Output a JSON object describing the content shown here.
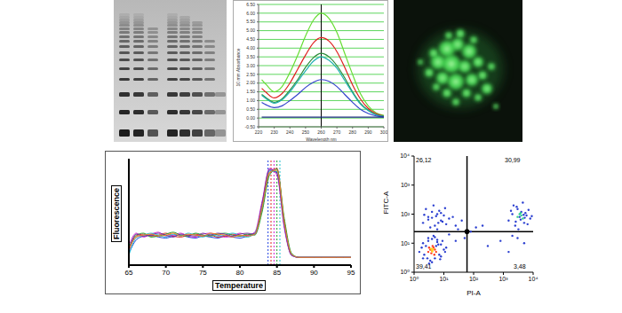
{
  "chart_data": [
    {
      "type": "line",
      "x_label": "Wavelength nm",
      "y_label": "10 mm Absorbance",
      "x": [
        222,
        225,
        230,
        235,
        240,
        245,
        250,
        255,
        260,
        265,
        270,
        275,
        280,
        285,
        290,
        295,
        300
      ],
      "series": [
        {
          "color": "#66dd33",
          "values": [
            2.2,
            1.9,
            1.5,
            1.8,
            2.6,
            3.6,
            4.7,
            5.6,
            6.0,
            5.7,
            4.9,
            3.7,
            2.5,
            1.4,
            0.7,
            0.3,
            0.15
          ]
        },
        {
          "color": "#e02020",
          "values": [
            1.7,
            1.45,
            1.15,
            1.4,
            2.0,
            2.8,
            3.6,
            4.3,
            4.6,
            4.4,
            3.8,
            2.9,
            1.9,
            1.1,
            0.55,
            0.25,
            0.12
          ]
        },
        {
          "color": "#2a8a3a",
          "values": [
            1.35,
            1.15,
            0.9,
            1.1,
            1.6,
            2.2,
            2.9,
            3.45,
            3.7,
            3.5,
            3.0,
            2.3,
            1.5,
            0.85,
            0.45,
            0.2,
            0.1
          ]
        },
        {
          "color": "#20b0b0",
          "values": [
            1.3,
            1.1,
            0.85,
            1.05,
            1.5,
            2.1,
            2.7,
            3.25,
            3.5,
            3.3,
            2.85,
            2.15,
            1.45,
            0.8,
            0.42,
            0.18,
            0.09
          ]
        },
        {
          "color": "#3344cc",
          "values": [
            0.9,
            0.75,
            0.6,
            0.7,
            1.0,
            1.35,
            1.75,
            2.05,
            2.2,
            2.1,
            1.8,
            1.35,
            0.9,
            0.5,
            0.26,
            0.12,
            0.06
          ]
        },
        {
          "color": "#1a2a80",
          "values": [
            0.05,
            0.05,
            0.05,
            0.05,
            0.05,
            0.05,
            0.05,
            0.05,
            0.05,
            0.05,
            0.05,
            0.05,
            0.05,
            0.05,
            0.05,
            0.05,
            0.05
          ]
        }
      ],
      "xlim": [
        220,
        300
      ],
      "xticks": [
        220,
        230,
        240,
        250,
        260,
        270,
        280,
        290,
        300
      ],
      "ylim": [
        -0.5,
        6.5
      ],
      "yticks": [
        {
          "value": -0.5,
          "label": "-0.50"
        },
        {
          "value": 0,
          "label": "0.00"
        },
        {
          "value": 0.5,
          "label": "0.50"
        },
        {
          "value": 1,
          "label": "1.00"
        },
        {
          "value": 1.5,
          "label": "1.50"
        },
        {
          "value": 2,
          "label": "2.00"
        },
        {
          "value": 2.5,
          "label": "2.50"
        },
        {
          "value": 3,
          "label": "3.00"
        },
        {
          "value": 3.5,
          "label": "3.50"
        },
        {
          "value": 4,
          "label": "4.00"
        },
        {
          "value": 4.5,
          "label": "4.50"
        },
        {
          "value": 5,
          "label": "5.00"
        },
        {
          "value": 5.5,
          "label": "5.50"
        },
        {
          "value": 6,
          "label": "6.00"
        },
        {
          "value": 6.5,
          "label": "6.50"
        }
      ],
      "grid": true,
      "reference_x": [
        260
      ]
    },
    {
      "type": "line",
      "x_label": "Temperature",
      "y_label": "Fluorescence",
      "x": [
        65,
        66,
        67,
        68,
        69,
        70,
        71,
        72,
        73,
        74,
        75,
        76,
        77,
        78,
        79,
        80,
        81,
        82,
        83,
        84,
        85,
        86,
        87,
        88,
        89,
        90,
        91,
        92,
        93,
        94,
        95
      ],
      "series": [
        {
          "color": "#2040e0",
          "values": [
            0.12,
            0.26,
            0.3,
            0.31,
            0.29,
            0.28,
            0.3,
            0.31,
            0.29,
            0.28,
            0.3,
            0.29,
            0.28,
            0.3,
            0.29,
            0.28,
            0.3,
            0.32,
            0.62,
            0.98,
            0.96,
            0.4,
            0.1,
            0.08,
            0.08,
            0.08,
            0.08,
            0.08,
            0.08,
            0.08,
            0.08
          ]
        },
        {
          "color": "#e02020",
          "values": [
            0.15,
            0.3,
            0.32,
            0.3,
            0.31,
            0.33,
            0.3,
            0.29,
            0.31,
            0.32,
            0.3,
            0.31,
            0.29,
            0.3,
            0.32,
            0.3,
            0.31,
            0.33,
            0.58,
            0.95,
            1.0,
            0.45,
            0.11,
            0.08,
            0.08,
            0.08,
            0.08,
            0.08,
            0.08,
            0.08,
            0.08
          ]
        },
        {
          "color": "#d020d0",
          "values": [
            0.2,
            0.33,
            0.29,
            0.32,
            0.34,
            0.3,
            0.31,
            0.33,
            0.3,
            0.29,
            0.32,
            0.33,
            0.31,
            0.29,
            0.3,
            0.33,
            0.31,
            0.34,
            0.66,
            1.0,
            0.93,
            0.38,
            0.1,
            0.08,
            0.08,
            0.08,
            0.08,
            0.08,
            0.08,
            0.08,
            0.08
          ]
        },
        {
          "color": "#20a030",
          "values": [
            0.18,
            0.31,
            0.33,
            0.29,
            0.3,
            0.32,
            0.34,
            0.31,
            0.3,
            0.33,
            0.31,
            0.3,
            0.32,
            0.33,
            0.31,
            0.3,
            0.32,
            0.31,
            0.55,
            0.93,
            0.99,
            0.48,
            0.12,
            0.08,
            0.08,
            0.08,
            0.08,
            0.08,
            0.08,
            0.08,
            0.08
          ]
        },
        {
          "color": "#20c0d0",
          "values": [
            0.1,
            0.28,
            0.31,
            0.33,
            0.31,
            0.29,
            0.32,
            0.3,
            0.33,
            0.31,
            0.29,
            0.32,
            0.3,
            0.31,
            0.33,
            0.31,
            0.29,
            0.33,
            0.6,
            0.97,
            0.97,
            0.42,
            0.11,
            0.08,
            0.08,
            0.08,
            0.08,
            0.08,
            0.08,
            0.08,
            0.08
          ]
        },
        {
          "color": "#7030a0",
          "values": [
            0.14,
            0.32,
            0.3,
            0.31,
            0.33,
            0.31,
            0.29,
            0.32,
            0.31,
            0.3,
            0.33,
            0.31,
            0.33,
            0.32,
            0.3,
            0.32,
            0.33,
            0.32,
            0.64,
            0.99,
            0.95,
            0.41,
            0.1,
            0.08,
            0.08,
            0.08,
            0.08,
            0.08,
            0.08,
            0.08,
            0.08
          ]
        },
        {
          "color": "#f08020",
          "values": [
            0.16,
            0.29,
            0.31,
            0.32,
            0.3,
            0.31,
            0.33,
            0.3,
            0.32,
            0.31,
            0.3,
            0.33,
            0.32,
            0.31,
            0.29,
            0.31,
            0.3,
            0.32,
            0.6,
            0.96,
            0.98,
            0.44,
            0.11,
            0.08,
            0.08,
            0.08,
            0.08,
            0.08,
            0.08,
            0.08,
            0.08
          ]
        }
      ],
      "xlim": [
        65,
        95
      ],
      "xticks": [
        65,
        70,
        75,
        80,
        85,
        90,
        95
      ],
      "ylim": [
        0,
        1.1
      ],
      "tick_labels": "x",
      "reference_x": [
        83.8,
        84.2,
        84.6,
        85.0,
        85.4
      ]
    },
    {
      "type": "scatter",
      "x_label": "PI-A",
      "y_label": "FITC-A",
      "log": true,
      "xlim": [
        1,
        10000
      ],
      "ylim": [
        1,
        10000
      ],
      "xticks": [
        {
          "value": 1,
          "label": "10⁰"
        },
        {
          "value": 10,
          "label": "10¹"
        },
        {
          "value": 100,
          "label": "10²"
        },
        {
          "value": 1000,
          "label": "10³"
        },
        {
          "value": 10000,
          "label": "10⁴"
        }
      ],
      "yticks": [
        {
          "value": 1,
          "label": "10⁰"
        },
        {
          "value": 10,
          "label": "10¹"
        },
        {
          "value": 100,
          "label": "10²"
        },
        {
          "value": 1000,
          "label": "10³"
        },
        {
          "value": 10000,
          "label": "10⁴"
        }
      ],
      "thresholds": {
        "x": 60,
        "y": 25
      },
      "quadrants": {
        "values": [
          26.12,
          30.99,
          39.41,
          3.48
        ],
        "value_labels": [
          "26,12",
          "30,99",
          "39,41",
          "3,48"
        ]
      },
      "series": [
        {
          "color": "#2b3fd0",
          "x": [
            1.5,
            2,
            2.5,
            3,
            3.5,
            4,
            5,
            6,
            7,
            8,
            10,
            12,
            2,
            3,
            4,
            5,
            6,
            8,
            1.8,
            2.2,
            9,
            11,
            3.2,
            4.5,
            6.5,
            7.5,
            2.8,
            5.5
          ],
          "values": [
            5,
            3,
            8,
            12,
            2.5,
            14,
            3,
            11,
            4,
            9,
            6,
            7,
            10,
            15,
            2.2,
            16,
            13,
            3.5,
            7,
            4,
            12,
            5,
            2,
            18,
            9,
            2.8,
            3,
            8
          ]
        },
        {
          "color": "#2b3fd0",
          "x": [
            2,
            3,
            4,
            5,
            6,
            8,
            10,
            12,
            15,
            2.5,
            3.5,
            4.5,
            7,
            9,
            20,
            3,
            6,
            5.5,
            4,
            8,
            25,
            2.2,
            11,
            6.5
          ],
          "values": [
            50,
            80,
            120,
            40,
            100,
            60,
            90,
            45,
            70,
            150,
            35,
            200,
            130,
            55,
            80,
            65,
            30,
            85,
            75,
            110,
            40,
            95,
            160,
            50
          ]
        },
        {
          "color": "#2b3fd0",
          "x": [
            15,
            30,
            50,
            80,
            120,
            200,
            40,
            25
          ],
          "values": [
            20,
            30,
            15,
            25,
            35,
            40,
            60,
            12
          ]
        },
        {
          "color": "#2b3fd0",
          "x": [
            1500,
            2000,
            2500,
            3000,
            3500,
            4000,
            5000,
            6000,
            7000,
            8000,
            2200,
            3200,
            4500,
            5500,
            6500,
            2800,
            3800,
            4800,
            9000,
            1800,
            2600,
            5200
          ],
          "values": [
            60,
            100,
            40,
            150,
            80,
            120,
            50,
            90,
            140,
            70,
            200,
            30,
            250,
            110,
            45,
            180,
            65,
            95,
            85,
            130,
            55,
            75
          ]
        },
        {
          "color": "#2b3fd0",
          "x": [
            300,
            800,
            1500,
            3000,
            5000,
            2000
          ],
          "values": [
            8,
            12,
            5,
            15,
            10,
            18
          ]
        },
        {
          "color": "#2fcf8f",
          "x": [
            3000,
            3500,
            4000,
            4500,
            3800
          ],
          "values": [
            80,
            100,
            90,
            70,
            110
          ]
        },
        {
          "color": "#ff3b1f",
          "x": [
            3,
            3.5,
            4,
            4.5,
            5,
            3.8,
            4.2,
            5.5,
            3.2,
            4.8
          ],
          "values": [
            5,
            6,
            5.5,
            7,
            6,
            4.5,
            8,
            5,
            7,
            4
          ]
        },
        {
          "color": "#ffd21f",
          "x": [
            4,
            4.3,
            3.7,
            4.1
          ],
          "values": [
            5.8,
            6.2,
            6.5,
            5.2
          ]
        }
      ]
    }
  ]
}
